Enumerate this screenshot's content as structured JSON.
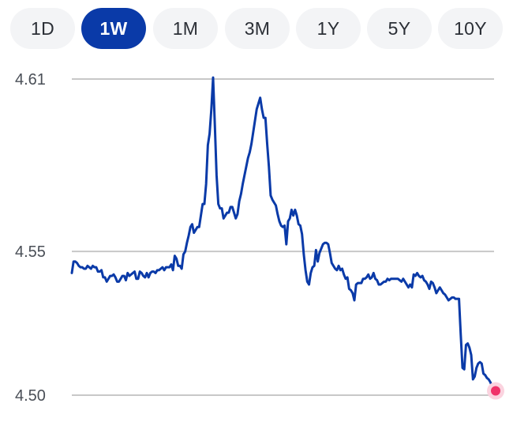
{
  "range_selector": {
    "options": [
      "1D",
      "1W",
      "1M",
      "3M",
      "1Y",
      "5Y",
      "10Y"
    ],
    "selected": "1W"
  },
  "colors": {
    "line": "#0a3aa8",
    "active_button": "#0a3aa8",
    "inactive_button": "#f3f4f6",
    "gridline": "#c8c8c8",
    "end_marker": "#f0336a",
    "end_marker_halo": "#fbd3df"
  },
  "chart_data": {
    "type": "line",
    "title": "",
    "xlabel": "",
    "ylabel": "",
    "ylim": [
      4.5,
      4.61
    ],
    "y_ticks": [
      {
        "value": 4.61,
        "label": "4.61"
      },
      {
        "value": 4.55,
        "label": "4.55"
      },
      {
        "value": 4.5,
        "label": "4.50"
      }
    ],
    "grid": true,
    "legend": "none",
    "series": [
      {
        "values": [
          4.5425,
          4.5465,
          4.5465,
          4.546,
          4.545,
          4.5445,
          4.5445,
          4.544,
          4.544,
          4.545,
          4.5445,
          4.544,
          4.545,
          4.5445,
          4.5445,
          4.543,
          4.543,
          4.5435,
          4.541,
          4.541,
          4.5395,
          4.5405,
          4.5415,
          4.5415,
          4.542,
          4.541,
          4.5395,
          4.5395,
          4.5405,
          4.5415,
          4.5415,
          4.54,
          4.5425,
          4.5415,
          4.542,
          4.5425,
          4.543,
          4.5405,
          4.5405,
          4.543,
          4.5425,
          4.5415,
          4.541,
          4.5425,
          4.541,
          4.5425,
          4.543,
          4.543,
          4.5425,
          4.5435,
          4.5435,
          4.544,
          4.5445,
          4.5435,
          4.5445,
          4.5445,
          4.5445,
          4.5455,
          4.5435,
          4.5485,
          4.5475,
          4.545,
          4.545,
          4.544,
          4.549,
          4.55,
          4.553,
          4.5555,
          4.5585,
          4.5595,
          4.5565,
          4.5575,
          4.5585,
          4.5585,
          4.5625,
          4.5665,
          4.5665,
          4.5735,
          4.587,
          4.591,
          4.5995,
          4.6105,
          4.594,
          4.5765,
          4.5665,
          4.565,
          4.565,
          4.5615,
          4.5625,
          4.5635,
          4.5635,
          4.5655,
          4.5655,
          4.5635,
          4.5615,
          4.563,
          4.5675,
          4.57,
          4.5735,
          4.5765,
          4.5795,
          4.5825,
          4.5845,
          4.5875,
          4.5915,
          4.5955,
          4.5995,
          4.6015,
          4.6035,
          4.5995,
          4.5965,
          4.5965,
          4.5875,
          4.5795,
          4.5695,
          4.568,
          4.567,
          4.566,
          4.563,
          4.5605,
          4.559,
          4.5585,
          4.559,
          4.5525,
          4.5605,
          4.5615,
          4.5645,
          4.5625,
          4.5645,
          4.5625,
          4.5595,
          4.559,
          4.556,
          4.549,
          4.5435,
          4.5395,
          4.5385,
          4.5425,
          4.5445,
          4.545,
          4.5505,
          4.5465,
          4.5495,
          4.551,
          4.5525,
          4.553,
          4.553,
          4.5525,
          4.5495,
          4.546,
          4.545,
          4.544,
          4.5435,
          4.545,
          4.5435,
          4.544,
          4.542,
          4.5405,
          4.541,
          4.537,
          4.5365,
          4.5355,
          4.533,
          4.5385,
          4.539,
          4.539,
          4.539,
          4.5405,
          4.5405,
          4.541,
          4.542,
          4.5405,
          4.541,
          4.5425,
          4.5405,
          4.54,
          4.5385,
          4.5385,
          4.539,
          4.5395,
          4.5395,
          4.5405,
          4.54,
          4.5405,
          4.5405,
          4.5405,
          4.5405,
          4.5405,
          4.54,
          4.5395,
          4.5405,
          4.5395,
          4.5385,
          4.5375,
          4.5385,
          4.5375,
          4.542,
          4.5415,
          4.5425,
          4.5415,
          4.541,
          4.5415,
          4.54,
          4.5395,
          4.5385,
          4.537,
          4.5395,
          4.539,
          4.5375,
          4.5355,
          4.5365,
          4.5375,
          4.5365,
          4.5355,
          4.535,
          4.534,
          4.533,
          4.5335,
          4.534,
          4.534,
          4.5335,
          4.5335,
          4.5335,
          4.521,
          4.5095,
          4.509,
          4.5175,
          4.518,
          4.5165,
          4.514,
          4.5055,
          4.5065,
          4.5095,
          4.511,
          4.5115,
          4.511,
          4.5075,
          4.507,
          4.506,
          4.5055,
          4.5045,
          4.503,
          4.502,
          4.5015
        ]
      }
    ]
  }
}
